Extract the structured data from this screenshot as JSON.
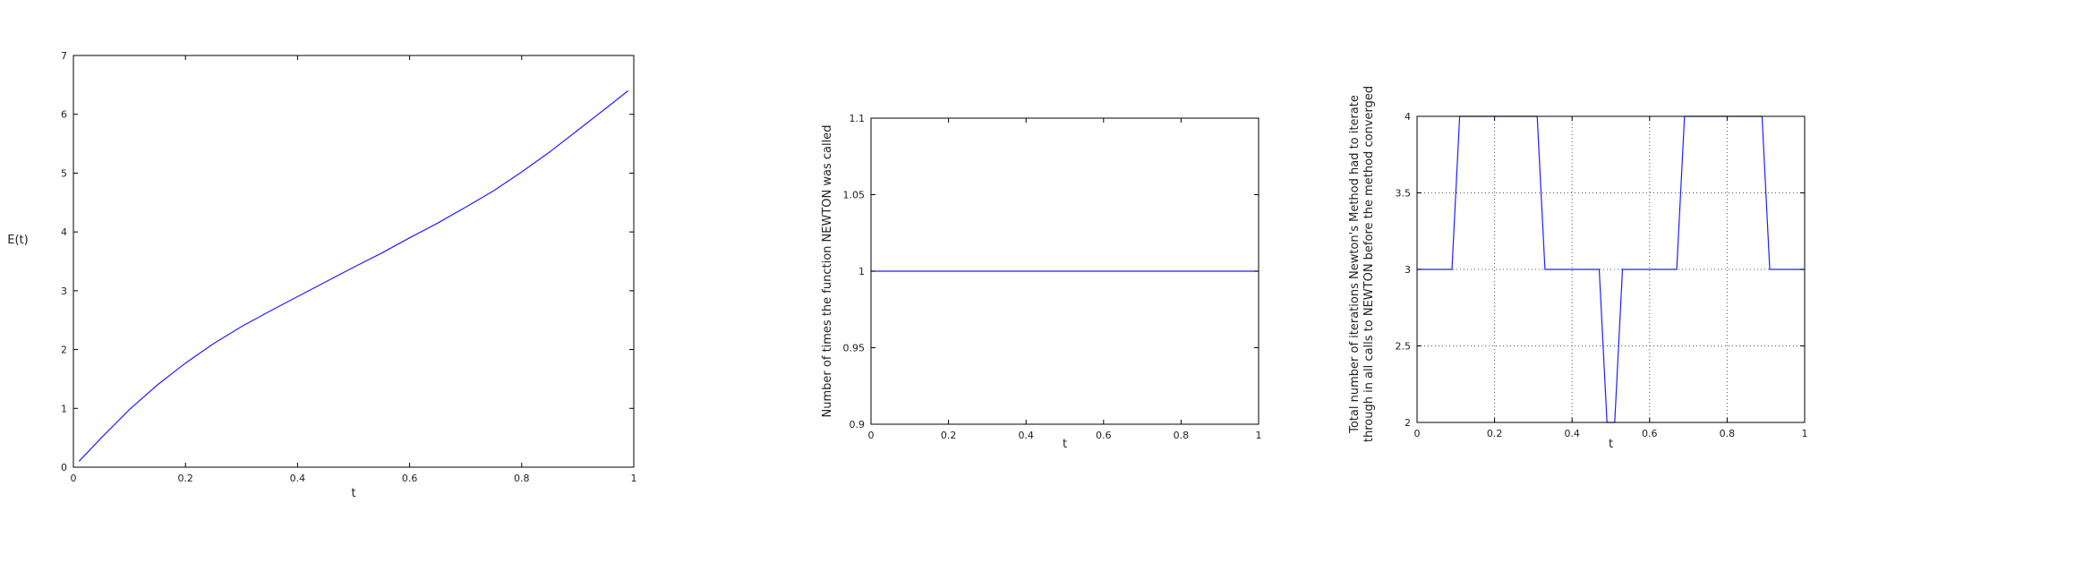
{
  "colors": {
    "series": "#1f1fff",
    "frame": "#000000",
    "grid": "#555555"
  },
  "chart_data": [
    {
      "type": "line",
      "xlabel": "t",
      "ylabel": "E(t)",
      "xlim": [
        0,
        1
      ],
      "ylim": [
        0,
        7
      ],
      "xticks": [
        0,
        0.2,
        0.4,
        0.6,
        0.8,
        1
      ],
      "xtick_labels": [
        "0",
        "0.2",
        "0.4",
        "0.6",
        "0.8",
        "1"
      ],
      "yticks": [
        0,
        1,
        2,
        3,
        4,
        5,
        6,
        7
      ],
      "ytick_labels": [
        "0",
        "1",
        "2",
        "3",
        "4",
        "5",
        "6",
        "7"
      ],
      "grid": false,
      "ylabel_rotated": false,
      "series": [
        {
          "x": [
            0.01,
            0.05,
            0.1,
            0.15,
            0.2,
            0.25,
            0.3,
            0.35,
            0.4,
            0.45,
            0.5,
            0.55,
            0.6,
            0.65,
            0.7,
            0.75,
            0.8,
            0.85,
            0.9,
            0.95,
            0.99
          ],
          "y": [
            0.1,
            0.5,
            0.98,
            1.4,
            1.77,
            2.1,
            2.39,
            2.65,
            2.9,
            3.15,
            3.4,
            3.64,
            3.9,
            4.15,
            4.42,
            4.7,
            5.02,
            5.36,
            5.73,
            6.1,
            6.4
          ]
        }
      ]
    },
    {
      "type": "line",
      "xlabel": "t",
      "ylabel": "Number of times the function NEWTON was called",
      "xlim": [
        0,
        1
      ],
      "ylim": [
        0.9,
        1.1
      ],
      "xticks": [
        0,
        0.2,
        0.4,
        0.6,
        0.8,
        1
      ],
      "xtick_labels": [
        "0",
        "0.2",
        "0.4",
        "0.6",
        "0.8",
        "1"
      ],
      "yticks": [
        0.9,
        0.95,
        1,
        1.05,
        1.1
      ],
      "ytick_labels": [
        "0.9",
        "0.95",
        "1",
        "1.05",
        "1.1"
      ],
      "grid": false,
      "ylabel_rotated": true,
      "series": [
        {
          "x": [
            0,
            1
          ],
          "y": [
            1,
            1
          ]
        }
      ]
    },
    {
      "type": "line",
      "xlabel": "t",
      "ylabel": "Total number of iterations Newton's Method had to iterate through in all calls to NEWTON before the method converged",
      "ylabel_lines": [
        "Total number of iterations Newton's Method had to iterate",
        "through in all calls to NEWTON before the method converged"
      ],
      "xlim": [
        0,
        1
      ],
      "ylim": [
        2,
        4
      ],
      "xticks": [
        0,
        0.2,
        0.4,
        0.6,
        0.8,
        1
      ],
      "xtick_labels": [
        "0",
        "0.2",
        "0.4",
        "0.6",
        "0.8",
        "1"
      ],
      "yticks": [
        2,
        2.5,
        3,
        3.5,
        4
      ],
      "ytick_labels": [
        "2",
        "2.5",
        "3",
        "3.5",
        "4"
      ],
      "grid": true,
      "ylabel_rotated": true,
      "series": [
        {
          "x": [
            0,
            0.09,
            0.11,
            0.31,
            0.33,
            0.47,
            0.49,
            0.51,
            0.53,
            0.67,
            0.69,
            0.89,
            0.91,
            1
          ],
          "y": [
            3,
            3,
            4,
            4,
            3,
            3,
            2,
            2,
            3,
            3,
            4,
            4,
            3,
            3
          ]
        }
      ]
    }
  ]
}
